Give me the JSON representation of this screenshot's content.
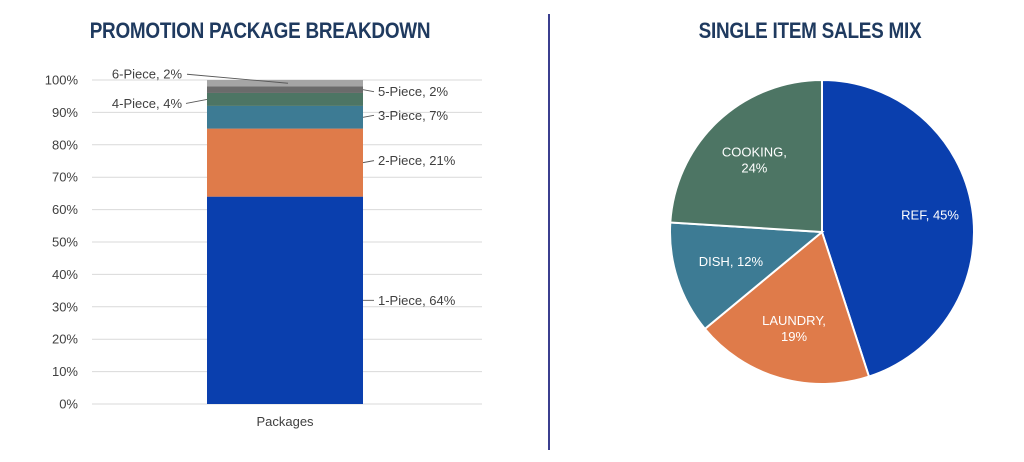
{
  "left_title": "PROMOTION PACKAGE BREAKDOWN",
  "right_title": "SINGLE ITEM SALES MIX",
  "colors": {
    "title": "#1f3a5f",
    "divider": "#3b3f8f",
    "grid": "#d9d9d9",
    "text": "#404040"
  },
  "chart_data": [
    {
      "type": "bar",
      "stacked": true,
      "title": "PROMOTION PACKAGE BREAKDOWN",
      "categories": [
        "Packages"
      ],
      "ylim": [
        0,
        100
      ],
      "yticks": [
        "0%",
        "10%",
        "20%",
        "30%",
        "40%",
        "50%",
        "60%",
        "70%",
        "80%",
        "90%",
        "100%"
      ],
      "grid": true,
      "series": [
        {
          "name": "1-Piece",
          "values": [
            64
          ],
          "label": "1-Piece, 64%",
          "color": "#0a3fae"
        },
        {
          "name": "2-Piece",
          "values": [
            21
          ],
          "label": "2-Piece, 21%",
          "color": "#df7b4a"
        },
        {
          "name": "3-Piece",
          "values": [
            7
          ],
          "label": "3-Piece, 7%",
          "color": "#3d7b94"
        },
        {
          "name": "4-Piece",
          "values": [
            4
          ],
          "label": "4-Piece, 4%",
          "color": "#4d7564"
        },
        {
          "name": "5-Piece",
          "values": [
            2
          ],
          "label": "5-Piece, 2%",
          "color": "#6b6b6b"
        },
        {
          "name": "6-Piece",
          "values": [
            2
          ],
          "label": "6-Piece, 2%",
          "color": "#a5a5a5"
        }
      ]
    },
    {
      "type": "pie",
      "title": "SINGLE ITEM SALES MIX",
      "slices": [
        {
          "label": "REF",
          "value": 45,
          "text": [
            "REF, 45%"
          ],
          "color": "#0a3fae"
        },
        {
          "label": "LAUNDRY",
          "value": 19,
          "text": [
            "LAUNDRY,",
            "19%"
          ],
          "color": "#df7b4a"
        },
        {
          "label": "DISH",
          "value": 12,
          "text": [
            "DISH, 12%"
          ],
          "color": "#3d7b94"
        },
        {
          "label": "COOKING",
          "value": 24,
          "text": [
            "COOKING,",
            "24%"
          ],
          "color": "#4d7564"
        }
      ]
    }
  ]
}
